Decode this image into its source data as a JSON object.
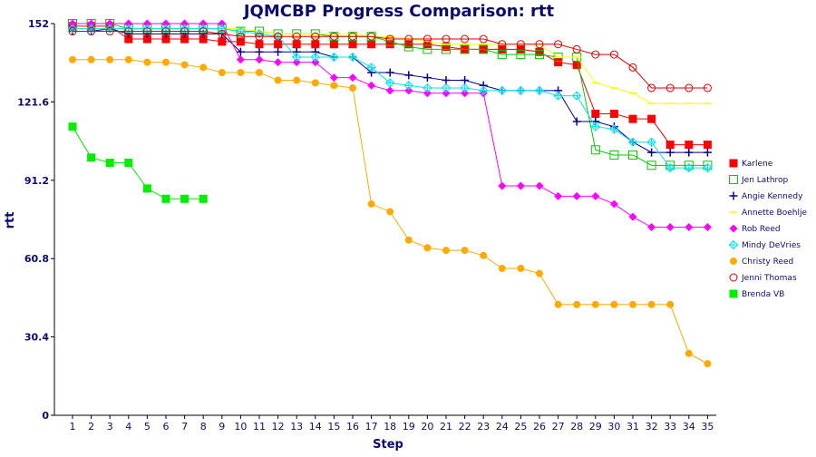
{
  "chart_data": {
    "type": "line",
    "title": "JQMCBP Progress Comparison: rtt",
    "xlabel": "Step",
    "ylabel": "rtt",
    "ylim": [
      0,
      152
    ],
    "yticks": [
      0,
      30.4,
      60.8,
      91.2,
      121.6,
      152
    ],
    "ytick_labels": [
      "0",
      "30.4",
      "60.8",
      "91.2",
      "121.6",
      "152"
    ],
    "categories": [
      "1",
      "2",
      "3",
      "4",
      "5",
      "6",
      "7",
      "8",
      "9",
      "10",
      "11",
      "12",
      "13",
      "14",
      "15",
      "16",
      "17",
      "18",
      "19",
      "20",
      "21",
      "22",
      "23",
      "24",
      "25",
      "26",
      "27",
      "28",
      "29",
      "30",
      "31",
      "32",
      "33",
      "34",
      "35"
    ],
    "grid": false,
    "legend_position": "right",
    "series": [
      {
        "name": "Karlene",
        "color": "#ff0000",
        "marker": "square-filled",
        "values": [
          151,
          151,
          151,
          146,
          146,
          146,
          146,
          146,
          145,
          145,
          144,
          144,
          144,
          144,
          144,
          144,
          144,
          144,
          144,
          144,
          143,
          142,
          142,
          142,
          142,
          141,
          137,
          136,
          117,
          117,
          115,
          115,
          105,
          105,
          105
        ]
      },
      {
        "name": "Jen Lathrop",
        "color": "#00cc00",
        "marker": "square-open",
        "values": [
          152,
          152,
          152,
          150,
          150,
          150,
          150,
          150,
          150,
          149,
          149,
          148,
          148,
          148,
          147,
          147,
          147,
          145,
          143,
          142,
          142,
          142,
          142,
          140,
          140,
          140,
          139,
          139,
          103,
          101,
          101,
          97,
          97,
          97,
          97
        ]
      },
      {
        "name": "Angie Kennedy",
        "color": "#00008b",
        "marker": "plus",
        "values": [
          149,
          149,
          150,
          148,
          148,
          148,
          148,
          148,
          148,
          141,
          141,
          141,
          141,
          141,
          139,
          139,
          133,
          133,
          132,
          131,
          130,
          130,
          128,
          126,
          126,
          126,
          126,
          114,
          114,
          112,
          106,
          102,
          102,
          102,
          102
        ]
      },
      {
        "name": "Annette Boehlje",
        "color": "#ffff00",
        "marker": "line",
        "values": [
          150,
          150,
          150,
          150,
          150,
          150,
          150,
          150,
          150,
          150,
          149,
          148,
          148,
          148,
          148,
          148,
          147,
          147,
          146,
          145,
          144,
          144,
          144,
          144,
          144,
          144,
          139,
          139,
          129,
          127,
          125,
          121,
          121,
          121,
          121
        ]
      },
      {
        "name": "Rob Reed",
        "color": "#ff00ff",
        "marker": "diamond",
        "values": [
          152,
          152,
          152,
          152,
          152,
          152,
          152,
          152,
          152,
          138,
          138,
          137,
          137,
          137,
          131,
          131,
          128,
          126,
          126,
          125,
          125,
          125,
          125,
          89,
          89,
          89,
          85,
          85,
          85,
          82,
          77,
          73,
          73,
          73,
          73
        ]
      },
      {
        "name": "Mindy DeVries",
        "color": "#00e5ee",
        "marker": "cross-diamond",
        "values": [
          150,
          150,
          150,
          150,
          150,
          150,
          150,
          150,
          150,
          149,
          148,
          147,
          139,
          139,
          139,
          139,
          135,
          129,
          128,
          127,
          127,
          127,
          126,
          126,
          126,
          126,
          124,
          124,
          112,
          111,
          106,
          106,
          96,
          96,
          96
        ]
      },
      {
        "name": "Christy Reed",
        "color": "#ffaa00",
        "marker": "circle-filled",
        "values": [
          138,
          138,
          138,
          138,
          137,
          137,
          136,
          135,
          133,
          133,
          133,
          130,
          130,
          129,
          128,
          127,
          82,
          79,
          68,
          65,
          64,
          64,
          62,
          57,
          57,
          55,
          43,
          43,
          43,
          43,
          43,
          43,
          43,
          24,
          20
        ]
      },
      {
        "name": "Jenni Thomas",
        "color": "#dd0000",
        "marker": "circle-open",
        "values": [
          149,
          149,
          149,
          149,
          149,
          149,
          149,
          149,
          148,
          147,
          147,
          147,
          147,
          147,
          147,
          147,
          147,
          146,
          146,
          146,
          146,
          146,
          146,
          144,
          144,
          144,
          144,
          142,
          140,
          140,
          135,
          127,
          127,
          127,
          127
        ]
      },
      {
        "name": "Brenda VB",
        "color": "#00ee00",
        "marker": "square-filled",
        "values": [
          112,
          100,
          98,
          98,
          88,
          84,
          84,
          84,
          null,
          null,
          null,
          null,
          null,
          null,
          null,
          null,
          null,
          null,
          null,
          null,
          null,
          null,
          null,
          null,
          null,
          null,
          null,
          null,
          null,
          null,
          null,
          null,
          null,
          null,
          null
        ]
      }
    ]
  }
}
